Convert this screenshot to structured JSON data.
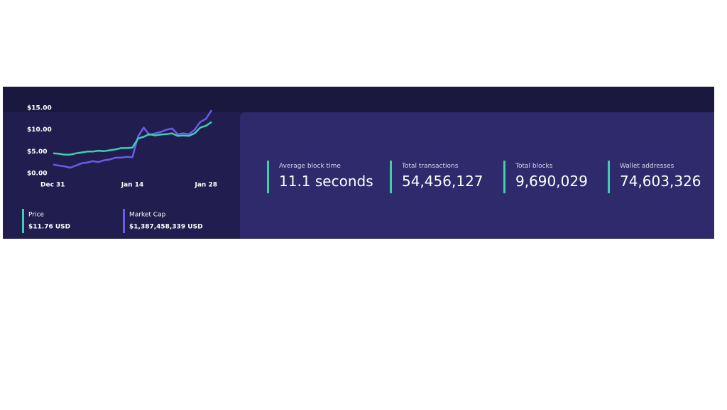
{
  "chart_data": {
    "type": "line",
    "categories": [
      "Dec 31",
      null,
      null,
      null,
      null,
      null,
      null,
      null,
      null,
      null,
      null,
      null,
      null,
      null,
      "Jan 14",
      null,
      null,
      null,
      null,
      null,
      null,
      null,
      null,
      null,
      null,
      null,
      null,
      null,
      "Jan 28"
    ],
    "series": [
      {
        "name": "Price",
        "summary": "$11.76 USD",
        "color": "#3ecfae",
        "values": [
          4.6,
          4.5,
          4.3,
          4.3,
          4.6,
          4.8,
          5.0,
          5.0,
          5.2,
          5.1,
          5.3,
          5.5,
          5.8,
          5.8,
          5.9,
          8.0,
          8.4,
          9.0,
          8.7,
          8.9,
          9.0,
          9.2,
          8.6,
          8.7,
          8.6,
          9.2,
          10.5,
          10.9,
          11.8
        ]
      },
      {
        "name": "Market Cap",
        "summary": "$1,387,458,339 USD",
        "color": "#6b5ce7",
        "values": [
          2.0,
          1.8,
          1.6,
          1.3,
          1.8,
          2.3,
          2.5,
          2.8,
          2.6,
          3.0,
          3.2,
          3.6,
          3.6,
          3.8,
          3.7,
          8.5,
          10.5,
          8.8,
          9.2,
          9.5,
          10.0,
          10.3,
          9.0,
          9.2,
          9.0,
          10.0,
          11.8,
          12.5,
          14.5
        ]
      }
    ],
    "ylim": [
      0,
      15
    ],
    "yticks": [
      {
        "value": 0,
        "label": "$0.00"
      },
      {
        "value": 5,
        "label": "$5.00"
      },
      {
        "value": 10,
        "label": "$10.00"
      },
      {
        "value": 15,
        "label": "$15.00"
      }
    ]
  },
  "stats": [
    {
      "label": "Average block time",
      "value": "11.1 seconds"
    },
    {
      "label": "Total transactions",
      "value": "54,456,127"
    },
    {
      "label": "Total blocks",
      "value": "9,690,029"
    },
    {
      "label": "Wallet addresses",
      "value": "74,603,326"
    }
  ]
}
